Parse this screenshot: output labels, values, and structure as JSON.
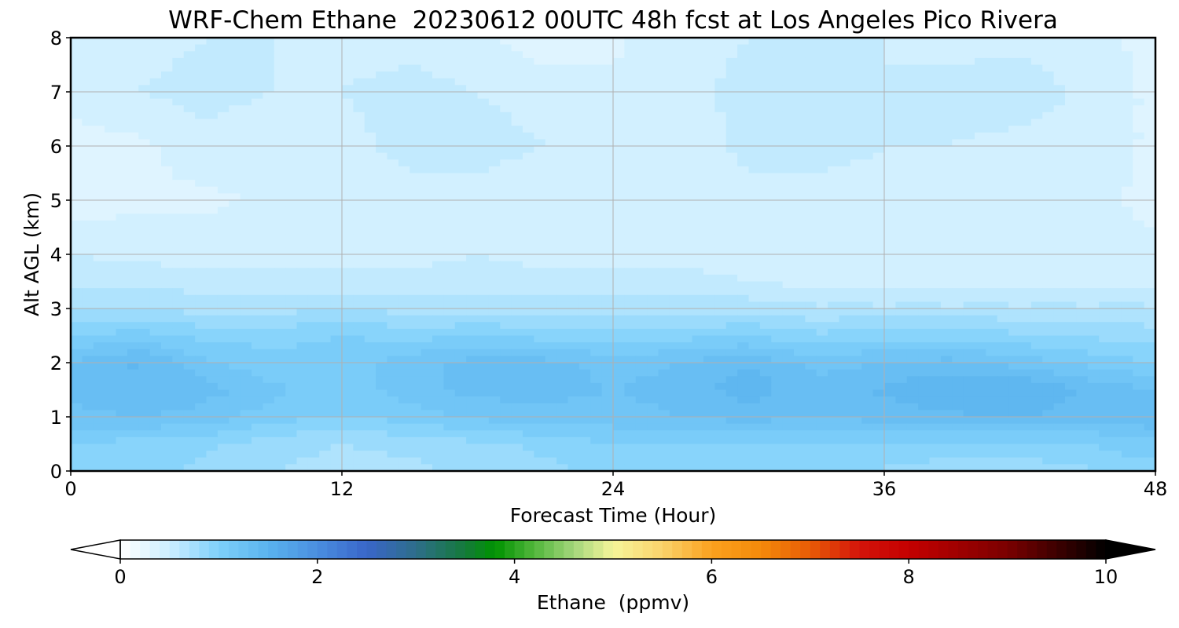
{
  "chart_data": {
    "type": "heatmap",
    "title": "WRF-Chem Ethane  20230612 00UTC 48h fcst at Los Angeles Pico Rivera",
    "xlabel": "Forecast Time (Hour)",
    "ylabel": "Alt AGL (km)",
    "xlim": [
      0,
      48
    ],
    "ylim": [
      0,
      8
    ],
    "xticks": [
      0,
      12,
      24,
      36,
      48
    ],
    "yticks": [
      0,
      1,
      2,
      3,
      4,
      5,
      6,
      7,
      8
    ],
    "grid": true,
    "x": [
      0,
      3,
      6,
      9,
      12,
      15,
      18,
      21,
      24,
      27,
      30,
      33,
      36,
      39,
      42,
      45,
      48
    ],
    "y": [
      0,
      0.5,
      1,
      1.5,
      2,
      2.5,
      3,
      3.5,
      4,
      5,
      6,
      7,
      8
    ],
    "z": [
      [
        0.95,
        0.9,
        0.85,
        0.75,
        0.7,
        0.7,
        0.8,
        0.85,
        0.9,
        0.9,
        0.95,
        0.95,
        0.85,
        0.8,
        0.8,
        0.85,
        0.95
      ],
      [
        1.0,
        0.95,
        0.9,
        0.8,
        0.75,
        0.8,
        0.85,
        0.9,
        1.0,
        1.0,
        1.0,
        1.0,
        1.0,
        0.95,
        0.95,
        1.0,
        1.1
      ],
      [
        1.2,
        1.25,
        1.2,
        1.05,
        1.0,
        1.05,
        1.15,
        1.2,
        1.2,
        1.25,
        1.3,
        1.25,
        1.3,
        1.35,
        1.4,
        1.3,
        1.35
      ],
      [
        1.3,
        1.35,
        1.3,
        1.15,
        1.05,
        1.2,
        1.3,
        1.3,
        1.25,
        1.3,
        1.45,
        1.3,
        1.4,
        1.5,
        1.5,
        1.35,
        1.25
      ],
      [
        1.25,
        1.4,
        1.15,
        1.05,
        1.05,
        1.2,
        1.3,
        1.3,
        1.2,
        1.25,
        1.35,
        1.2,
        1.25,
        1.3,
        1.2,
        1.1,
        1.0
      ],
      [
        1.0,
        1.05,
        0.95,
        0.95,
        1.0,
        0.95,
        1.0,
        0.95,
        0.95,
        0.95,
        1.0,
        0.9,
        0.95,
        0.95,
        0.9,
        0.85,
        0.8
      ],
      [
        0.75,
        0.75,
        0.7,
        0.7,
        0.75,
        0.7,
        0.7,
        0.7,
        0.7,
        0.7,
        0.7,
        0.65,
        0.65,
        0.65,
        0.65,
        0.65,
        0.65
      ],
      [
        0.6,
        0.6,
        0.55,
        0.55,
        0.55,
        0.55,
        0.55,
        0.55,
        0.55,
        0.55,
        0.5,
        0.45,
        0.45,
        0.45,
        0.45,
        0.45,
        0.45
      ],
      [
        0.5,
        0.45,
        0.45,
        0.45,
        0.45,
        0.45,
        0.5,
        0.45,
        0.45,
        0.45,
        0.45,
        0.4,
        0.4,
        0.4,
        0.4,
        0.4,
        0.4
      ],
      [
        0.3,
        0.35,
        0.35,
        0.4,
        0.4,
        0.45,
        0.45,
        0.4,
        0.4,
        0.4,
        0.45,
        0.45,
        0.45,
        0.4,
        0.4,
        0.4,
        0.35
      ],
      [
        0.3,
        0.35,
        0.45,
        0.4,
        0.45,
        0.55,
        0.55,
        0.5,
        0.4,
        0.4,
        0.55,
        0.55,
        0.5,
        0.5,
        0.45,
        0.45,
        0.35
      ],
      [
        0.45,
        0.5,
        0.55,
        0.5,
        0.5,
        0.55,
        0.5,
        0.45,
        0.4,
        0.45,
        0.55,
        0.6,
        0.5,
        0.55,
        0.6,
        0.45,
        0.35
      ],
      [
        0.45,
        0.45,
        0.5,
        0.5,
        0.45,
        0.45,
        0.4,
        0.3,
        0.35,
        0.45,
        0.5,
        0.55,
        0.5,
        0.45,
        0.45,
        0.4,
        0.35
      ]
    ],
    "colorbar": {
      "label": "Ethane  (ppmv)",
      "min": 0,
      "max": 10,
      "ticks": [
        0,
        2,
        4,
        6,
        8,
        10
      ],
      "extend": "both",
      "stops": [
        {
          "v": 0,
          "c": "#ffffff"
        },
        {
          "v": 0.5,
          "c": "#cceeff"
        },
        {
          "v": 1.0,
          "c": "#7ed0fa"
        },
        {
          "v": 1.5,
          "c": "#5ab3ee"
        },
        {
          "v": 2.0,
          "c": "#4a8ee0"
        },
        {
          "v": 2.5,
          "c": "#3966c9"
        },
        {
          "v": 3.0,
          "c": "#2e6e8a"
        },
        {
          "v": 3.5,
          "c": "#147a3a"
        },
        {
          "v": 3.8,
          "c": "#009300"
        },
        {
          "v": 4.2,
          "c": "#52b63c"
        },
        {
          "v": 4.6,
          "c": "#a3d67b"
        },
        {
          "v": 5.0,
          "c": "#f5f59a"
        },
        {
          "v": 5.5,
          "c": "#fad36b"
        },
        {
          "v": 6.0,
          "c": "#fba11e"
        },
        {
          "v": 6.5,
          "c": "#f48a0a"
        },
        {
          "v": 7.0,
          "c": "#e85b06"
        },
        {
          "v": 7.5,
          "c": "#d4140a"
        },
        {
          "v": 8.0,
          "c": "#c40000"
        },
        {
          "v": 9.0,
          "c": "#7a0000"
        },
        {
          "v": 10.0,
          "c": "#000000"
        }
      ]
    }
  }
}
